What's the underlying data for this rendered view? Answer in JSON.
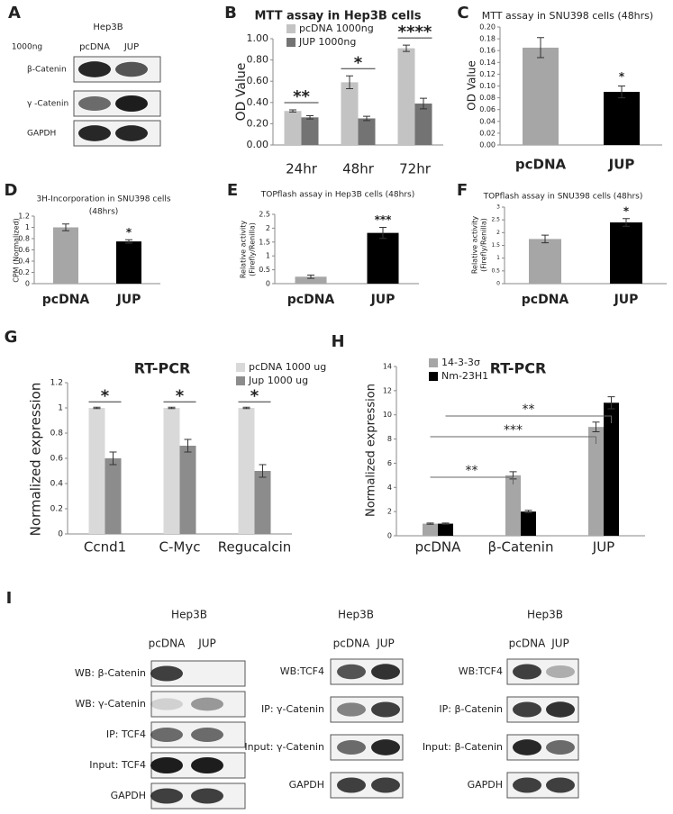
{
  "panel_labels": [
    "A",
    "B",
    "C",
    "D",
    "E",
    "F",
    "G",
    "H",
    "I"
  ],
  "blot_a": {
    "cell_line": "Hep3B",
    "dose": "1000ng",
    "lanes": [
      "pcDNA",
      "JUP"
    ],
    "rows": [
      "β-Catenin",
      "γ -Catenin",
      "GAPDH"
    ]
  },
  "blot_i": [
    {
      "cell_line": "Hep3B",
      "lanes": [
        "pcDNA",
        "JUP"
      ],
      "rows": [
        "WB: β-Catenin",
        "WB: γ-Catenin",
        "IP: TCF4",
        "Input: TCF4",
        "GAPDH"
      ]
    },
    {
      "cell_line": "Hep3B",
      "lanes": [
        "pcDNA",
        "JUP"
      ],
      "rows": [
        "WB:TCF4",
        "IP: γ-Catenin",
        "Input: γ-Catenin",
        "GAPDH"
      ]
    },
    {
      "cell_line": "Hep3B",
      "lanes": [
        "pcDNA",
        "JUP"
      ],
      "rows": [
        "WB:TCF4",
        "IP: β-Catenin",
        "Input: β-Catenin",
        "GAPDH"
      ]
    }
  ],
  "chart_data": [
    {
      "type": "bar",
      "title": "MTT assay in Hep3B cells",
      "y_label": "OD Value",
      "categories": [
        "24hr",
        "48hr",
        "72hr"
      ],
      "series": [
        {
          "name": "pcDNA 1000ng",
          "color": "#c3c3c3",
          "values": [
            0.32,
            0.59,
            0.91
          ],
          "errors": [
            0.01,
            0.06,
            0.03
          ]
        },
        {
          "name": "JUP 1000ng",
          "color": "#737373",
          "values": [
            0.26,
            0.25,
            0.39
          ],
          "errors": [
            0.015,
            0.02,
            0.05
          ]
        }
      ],
      "ylim": [
        0,
        1.0
      ],
      "yticks": [
        {
          "value": 0,
          "label": "0.00"
        },
        {
          "value": 0.2,
          "label": "0.20"
        },
        {
          "value": 0.4,
          "label": "0.40"
        },
        {
          "value": 0.6,
          "label": "0.60"
        },
        {
          "value": 0.8,
          "label": "0.80"
        },
        {
          "value": 1.0,
          "label": "1.00"
        }
      ],
      "annotations": [
        "**",
        "*",
        "****"
      ]
    },
    {
      "type": "bar",
      "title": "MTT assay in SNU398 cells (48hrs)",
      "y_label": "OD Value",
      "categories": [
        "pcDNA",
        "JUP"
      ],
      "values": [
        0.165,
        0.09
      ],
      "errors": [
        0.017,
        0.01
      ],
      "colors": [
        "#a6a6a6",
        "#000000"
      ],
      "ylim": [
        0,
        0.2
      ],
      "yticks": [
        {
          "value": 0,
          "label": "0.00"
        },
        {
          "value": 0.02,
          "label": "0.02"
        },
        {
          "value": 0.04,
          "label": "0.04"
        },
        {
          "value": 0.06,
          "label": "0.06"
        },
        {
          "value": 0.08,
          "label": "0.08"
        },
        {
          "value": 0.1,
          "label": "0.10"
        },
        {
          "value": 0.12,
          "label": "0.12"
        },
        {
          "value": 0.14,
          "label": "0.14"
        },
        {
          "value": 0.16,
          "label": "0.16"
        },
        {
          "value": 0.18,
          "label": "0.18"
        },
        {
          "value": 0.2,
          "label": "0.20"
        }
      ],
      "annotations": [
        null,
        "*"
      ]
    },
    {
      "type": "bar",
      "title": [
        "3H-Incorporation in SNU398 cells",
        "(48hrs)"
      ],
      "y_label": "CPM (Normalized)",
      "categories": [
        "pcDNA",
        "JUP"
      ],
      "values": [
        1.0,
        0.75
      ],
      "errors": [
        0.06,
        0.03
      ],
      "colors": [
        "#a6a6a6",
        "#000000"
      ],
      "ylim": [
        0,
        1.2
      ],
      "yticks": [
        0,
        0.2,
        0.4,
        0.6,
        0.8,
        1,
        1.2
      ],
      "annotations": [
        null,
        "*"
      ]
    },
    {
      "type": "bar",
      "title": "TOPflash assay in Hep3B cells (48hrs)",
      "y_label": [
        "Relative activity",
        "(Firefly/Renilla)"
      ],
      "categories": [
        "pcDNA",
        "JUP"
      ],
      "values": [
        0.25,
        1.83
      ],
      "errors": [
        0.06,
        0.2
      ],
      "colors": [
        "#a6a6a6",
        "#000000"
      ],
      "ylim": [
        0,
        2.5
      ],
      "yticks": [
        0,
        0.5,
        1,
        1.5,
        2,
        2.5
      ],
      "annotations": [
        null,
        "***"
      ]
    },
    {
      "type": "bar",
      "title": "TOPflash assay in SNU398 cells (48hrs)",
      "y_label": [
        "Relative activity",
        "(Firefly/Renilla)"
      ],
      "categories": [
        "pcDNA",
        "JUP"
      ],
      "values": [
        1.75,
        2.4
      ],
      "errors": [
        0.15,
        0.15
      ],
      "colors": [
        "#a6a6a6",
        "#000000"
      ],
      "ylim": [
        0,
        3
      ],
      "yticks": [
        0,
        0.5,
        1,
        1.5,
        2,
        2.5,
        3
      ],
      "annotations": [
        null,
        "*"
      ]
    },
    {
      "type": "bar",
      "title": "RT-PCR",
      "y_label": "Normalized expression",
      "categories": [
        "Ccnd1",
        "C-Myc",
        "Regucalcin"
      ],
      "series": [
        {
          "name": "pcDNA 1000 ug",
          "color": "#d9d9d9",
          "values": [
            1,
            1,
            1
          ],
          "errors": [
            0.005,
            0.005,
            0.005
          ]
        },
        {
          "name": "Jup 1000 ug",
          "color": "#8c8c8c",
          "values": [
            0.6,
            0.7,
            0.5
          ],
          "errors": [
            0.05,
            0.05,
            0.05
          ]
        }
      ],
      "ylim": [
        0,
        1.2
      ],
      "yticks": [
        0,
        0.2,
        0.4,
        0.6,
        0.8,
        1,
        1.2
      ],
      "annotations": [
        "*",
        "*",
        "*"
      ]
    },
    {
      "type": "bar",
      "title": "RT-PCR",
      "y_label": "Normalized expression",
      "categories": [
        "pcDNA",
        "β-Catenin",
        "JUP"
      ],
      "series": [
        {
          "name": "14-3-3σ",
          "color": "#a6a6a6",
          "values": [
            1,
            5,
            9
          ],
          "errors": [
            0.05,
            0.3,
            0.4
          ]
        },
        {
          "name": "Nm-23H1",
          "color": "#000000",
          "values": [
            1,
            2,
            11
          ],
          "errors": [
            0.05,
            0.1,
            0.5
          ]
        }
      ],
      "ylim": [
        0,
        14
      ],
      "yticks": [
        0,
        2,
        4,
        6,
        8,
        10,
        12,
        14
      ],
      "annotations": [
        "**",
        "***",
        "**"
      ]
    }
  ]
}
